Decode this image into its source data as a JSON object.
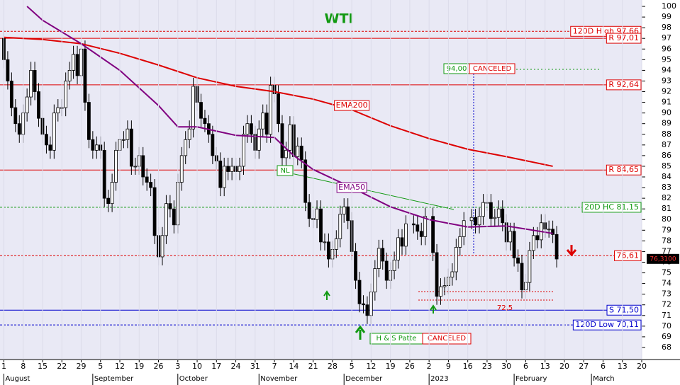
{
  "chart_data": {
    "type": "candlestick",
    "title": "WTI",
    "xlim": [
      -1,
      165
    ],
    "xticks": [
      {
        "value": 0,
        "label": "1"
      },
      {
        "value": 5,
        "label": "8"
      },
      {
        "value": 10,
        "label": "15"
      },
      {
        "value": 15,
        "label": "22"
      },
      {
        "value": 20,
        "label": "29"
      },
      {
        "value": 25,
        "label": "5"
      },
      {
        "value": 30,
        "label": "12"
      },
      {
        "value": 35,
        "label": "19"
      },
      {
        "value": 40,
        "label": "26"
      },
      {
        "value": 45,
        "label": "3"
      },
      {
        "value": 50,
        "label": "10"
      },
      {
        "value": 55,
        "label": "17"
      },
      {
        "value": 60,
        "label": "24"
      },
      {
        "value": 65,
        "label": "31"
      },
      {
        "value": 70,
        "label": "7"
      },
      {
        "value": 75,
        "label": "14"
      },
      {
        "value": 80,
        "label": "21"
      },
      {
        "value": 85,
        "label": "28"
      },
      {
        "value": 90,
        "label": "5"
      },
      {
        "value": 95,
        "label": "12"
      },
      {
        "value": 100,
        "label": "19"
      },
      {
        "value": 105,
        "label": "26"
      },
      {
        "value": 110,
        "label": "2"
      },
      {
        "value": 115,
        "label": "9"
      },
      {
        "value": 120,
        "label": "16"
      },
      {
        "value": 125,
        "label": "23"
      },
      {
        "value": 130,
        "label": "30"
      },
      {
        "value": 135,
        "label": "6"
      },
      {
        "value": 140,
        "label": "13"
      },
      {
        "value": 145,
        "label": "20"
      },
      {
        "value": 150,
        "label": "27"
      },
      {
        "value": 155,
        "label": "6"
      },
      {
        "value": 160,
        "label": "13"
      },
      {
        "value": 165,
        "label": "20"
      }
    ],
    "months": [
      {
        "value": 0,
        "label": "August"
      },
      {
        "value": 23,
        "label": "September"
      },
      {
        "value": 45,
        "label": "October"
      },
      {
        "value": 66,
        "label": "November"
      },
      {
        "value": 88,
        "label": "December"
      },
      {
        "value": 110,
        "label": "2023"
      },
      {
        "value": 132,
        "label": "February"
      },
      {
        "value": 152,
        "label": "March"
      }
    ],
    "ylim": [
      67.4,
      100.6
    ],
    "yticks": [
      68,
      69,
      70,
      71,
      72,
      73,
      74,
      75,
      76,
      77,
      78,
      79,
      80,
      81,
      82,
      83,
      84,
      85,
      86,
      87,
      88,
      89,
      90,
      91,
      92,
      93,
      94,
      95,
      96,
      97,
      98,
      99,
      100
    ],
    "open": [
      97,
      95,
      93,
      90.5,
      89,
      88,
      90,
      91.5,
      94,
      92,
      89.5,
      88,
      87,
      86.5,
      90,
      90.5,
      90.5,
      93,
      94,
      95.5,
      93.5,
      96,
      91,
      87.5,
      86.5,
      87,
      86.5,
      82,
      81.5,
      83.5,
      86.5,
      87.5,
      87.5,
      88.5,
      85,
      85,
      86,
      84,
      83.5,
      83,
      78.5,
      76.5,
      78.5,
      81.5,
      81,
      79.5,
      83.5,
      86,
      87.5,
      88.5,
      92.5,
      91,
      89.5,
      89,
      88,
      86,
      85.5,
      83,
      85,
      84.5,
      85,
      84.5,
      85,
      88,
      89,
      88,
      86.5,
      88.5,
      90,
      88,
      92.6,
      91.8,
      89,
      85.8,
      86.5,
      88.9,
      85.9,
      86.9,
      85.6,
      81.6,
      80.1,
      80,
      81,
      77.9,
      77.9,
      76.3,
      77.2,
      78.2,
      80.5,
      81.2,
      79.9,
      77,
      74.3,
      72.1,
      72,
      71,
      73.2,
      75.4,
      77.3,
      76.1,
      74.3,
      75.2,
      76.2,
      78.3,
      77.5,
      null,
      79.6,
      79.5,
      78.9,
      78.4,
      null,
      80.3,
      76.9,
      72.8,
      73.7,
      73.8,
      74.6,
      75.1,
      77.4,
      78.4,
      null,
      79.9,
      80.2,
      79.5,
      80.3,
      81.6,
      81.6,
      80.1,
      80.2,
      81,
      79.7,
      77.9,
      78.9,
      76.4,
      75.9,
      73.4,
      74.1,
      77.1,
      78.5,
      78.1,
      79.7,
      79.1,
      79.1,
      78.6
    ],
    "high": [
      97.8,
      95.8,
      93.8,
      91.3,
      89.8,
      90.8,
      92.3,
      94.8,
      94.8,
      92.8,
      90.3,
      88.8,
      87.8,
      90.8,
      91.3,
      91.3,
      93.8,
      94.8,
      96.3,
      96.3,
      96.8,
      96.8,
      91.8,
      88.3,
      87.8,
      87.8,
      87.3,
      82.8,
      84.3,
      87.3,
      88.3,
      88.3,
      89.3,
      89.3,
      85.8,
      86.8,
      86.8,
      84.8,
      84.3,
      83.8,
      79.3,
      79.3,
      82.3,
      82.3,
      81.8,
      84.3,
      86.8,
      88.3,
      89.3,
      93.3,
      93.3,
      91.8,
      90.3,
      89.8,
      88.8,
      86.8,
      86.3,
      85.8,
      85.8,
      85.8,
      85.8,
      85.8,
      88.8,
      89.8,
      89.8,
      88.8,
      89.3,
      90.8,
      90.8,
      93.4,
      93.4,
      92.6,
      89.8,
      87.3,
      89.7,
      89.7,
      87.7,
      87.7,
      86.4,
      82.4,
      80.9,
      81.8,
      81.8,
      78.7,
      78.7,
      78,
      79,
      81.3,
      82,
      82,
      80.7,
      77.8,
      75.1,
      72.9,
      72.8,
      74,
      76.2,
      78.1,
      78.1,
      76.9,
      76,
      77,
      79.1,
      79.1,
      80.4,
      null,
      80.4,
      80.3,
      79.7,
      81.1,
      null,
      81.1,
      77.7,
      74.5,
      74.6,
      75.4,
      75.9,
      78.2,
      79.2,
      80.7,
      null,
      81,
      81,
      81.1,
      82.4,
      82.4,
      82.4,
      81,
      81.8,
      81.8,
      80.5,
      79.7,
      79.7,
      77.2,
      76.7,
      74.9,
      77.9,
      79.3,
      79.3,
      80.5,
      80.5,
      79.9,
      79.9,
      79.4
    ],
    "low": [
      94.2,
      92.2,
      89.7,
      88.2,
      87.2,
      87.2,
      89.2,
      90.7,
      91.2,
      88.7,
      87.2,
      86.2,
      85.7,
      85.7,
      89.2,
      89.7,
      89.7,
      92.2,
      93.2,
      92.7,
      92.7,
      90.2,
      86.7,
      85.7,
      85.7,
      85.7,
      81.2,
      80.7,
      80.7,
      82.7,
      85.7,
      86.7,
      86.7,
      84.2,
      84.2,
      84.2,
      83.2,
      82.7,
      82.2,
      77.7,
      75.7,
      75.7,
      77.7,
      80.2,
      78.7,
      78.7,
      82.7,
      85.2,
      86.7,
      87.7,
      90.2,
      88.7,
      88.2,
      87.2,
      85.2,
      84.7,
      82.2,
      82.2,
      83.7,
      83.7,
      83.7,
      83.7,
      84.2,
      87.2,
      87.2,
      85.7,
      85.7,
      87.7,
      87.2,
      87.2,
      91,
      88.2,
      85,
      85,
      85.7,
      85.1,
      85.1,
      84.8,
      80.8,
      79.3,
      79.2,
      79.2,
      77.1,
      77.1,
      75.5,
      75.5,
      76.4,
      77.4,
      79.7,
      79.1,
      76.2,
      73.5,
      71.3,
      71.2,
      70.2,
      70.2,
      72.4,
      74.6,
      75.3,
      73.5,
      73.5,
      74.4,
      75.4,
      76.7,
      76.7,
      null,
      78.7,
      78.1,
      77.6,
      77.6,
      null,
      76.1,
      72,
      72,
      72.9,
      73,
      73.8,
      74.3,
      76.6,
      77.6,
      null,
      79.1,
      78.7,
      78.7,
      79.5,
      80.8,
      79.3,
      79.3,
      79.4,
      78.9,
      77.1,
      77.1,
      75.6,
      75.1,
      72.6,
      72.6,
      73.3,
      76.3,
      77.3,
      77.3,
      78.3,
      78.3,
      77.8,
      75.5
    ],
    "close": [
      95,
      93,
      90.5,
      89,
      88,
      90,
      91.5,
      94,
      92,
      89.5,
      88,
      87,
      86.5,
      90,
      90.5,
      90.5,
      93,
      94,
      95.5,
      93.5,
      96,
      91,
      87.5,
      86.5,
      87,
      86.5,
      82,
      81.5,
      83.5,
      86.5,
      87.5,
      87.5,
      88.5,
      85,
      85,
      86,
      84,
      83.5,
      83,
      78.5,
      76.5,
      78.5,
      81.5,
      81,
      79.5,
      83.5,
      86,
      87.5,
      88.5,
      92.5,
      91,
      89.5,
      89,
      88,
      86,
      85.5,
      83,
      85,
      84.5,
      85,
      84.5,
      85,
      88,
      89,
      88,
      86.5,
      88.5,
      90,
      88,
      92.6,
      91.8,
      89,
      85.8,
      86.5,
      88.9,
      85.9,
      86.9,
      85.6,
      81.6,
      80.1,
      80,
      81,
      77.9,
      77.9,
      76.3,
      77.2,
      78.2,
      80.5,
      81.2,
      79.9,
      77,
      74.3,
      72.1,
      72,
      71,
      73.2,
      75.4,
      77.3,
      76.1,
      74.3,
      75.2,
      76.2,
      78.3,
      77.5,
      79.6,
      null,
      79.5,
      78.9,
      78.4,
      80.3,
      null,
      76.9,
      72.8,
      73.7,
      73.8,
      74.6,
      75.1,
      77.4,
      78.4,
      79.9,
      null,
      80.2,
      79.5,
      80.3,
      81.6,
      81.6,
      80.1,
      80.2,
      81,
      79.7,
      77.9,
      78.9,
      76.4,
      75.9,
      73.4,
      74.1,
      77.1,
      78.5,
      78.1,
      79.7,
      79.1,
      79.1,
      78.6,
      76.3
    ],
    "lines": [
      {
        "name": "EMA200",
        "color": "#dd0000",
        "x": [
          0,
          10,
          20,
          30,
          40,
          50,
          60,
          70,
          80,
          90,
          100,
          110,
          120,
          130,
          142
        ],
        "values": [
          97.1,
          96.9,
          96.5,
          95.6,
          94.5,
          93.3,
          92.5,
          92,
          91.3,
          90.3,
          88.8,
          87.6,
          86.6,
          85.9,
          85
        ]
      },
      {
        "name": "EMA50",
        "color": "#800080",
        "x": [
          6,
          10,
          20,
          30,
          40,
          45,
          50,
          60,
          70,
          75,
          80,
          90,
          100,
          110,
          120,
          130,
          142
        ],
        "values": [
          100,
          98.7,
          96.5,
          94,
          90.7,
          88.7,
          88.7,
          87.9,
          87.7,
          86,
          84.7,
          83,
          81.2,
          80,
          79.3,
          79.4,
          78.7
        ]
      }
    ],
    "levels": [
      {
        "label": "120D High 97,66",
        "value": 97.66,
        "color": "#dd0000",
        "style": "dashed"
      },
      {
        "label": "R 97,01",
        "value": 97.01,
        "color": "#dd0000",
        "style": "solid"
      },
      {
        "label": "R 92,64",
        "value": 92.64,
        "color": "#dd0000",
        "style": "solid"
      },
      {
        "label": "R 84,65",
        "value": 84.65,
        "color": "#dd0000",
        "style": "solid"
      },
      {
        "label": "20D HC 81,15",
        "value": 81.15,
        "color": "#119911",
        "style": "dashed"
      },
      {
        "label": "76,61",
        "value": 76.61,
        "color": "#dd0000",
        "style": "dashed"
      },
      {
        "label": "S 71,50",
        "value": 71.5,
        "color": "#0000cc",
        "style": "solid"
      },
      {
        "label": "120D Low 70,11",
        "value": 70.11,
        "color": "#0000cc",
        "style": "dashed"
      }
    ],
    "last_price": {
      "value": 76.31,
      "label": "76,3100"
    },
    "annotations": {
      "neckline": "NL",
      "target": "94,00",
      "target_status": "CANCELED",
      "pattern": "H & S Patte",
      "pattern_status": "CANCELED",
      "stop": "72,5"
    }
  }
}
